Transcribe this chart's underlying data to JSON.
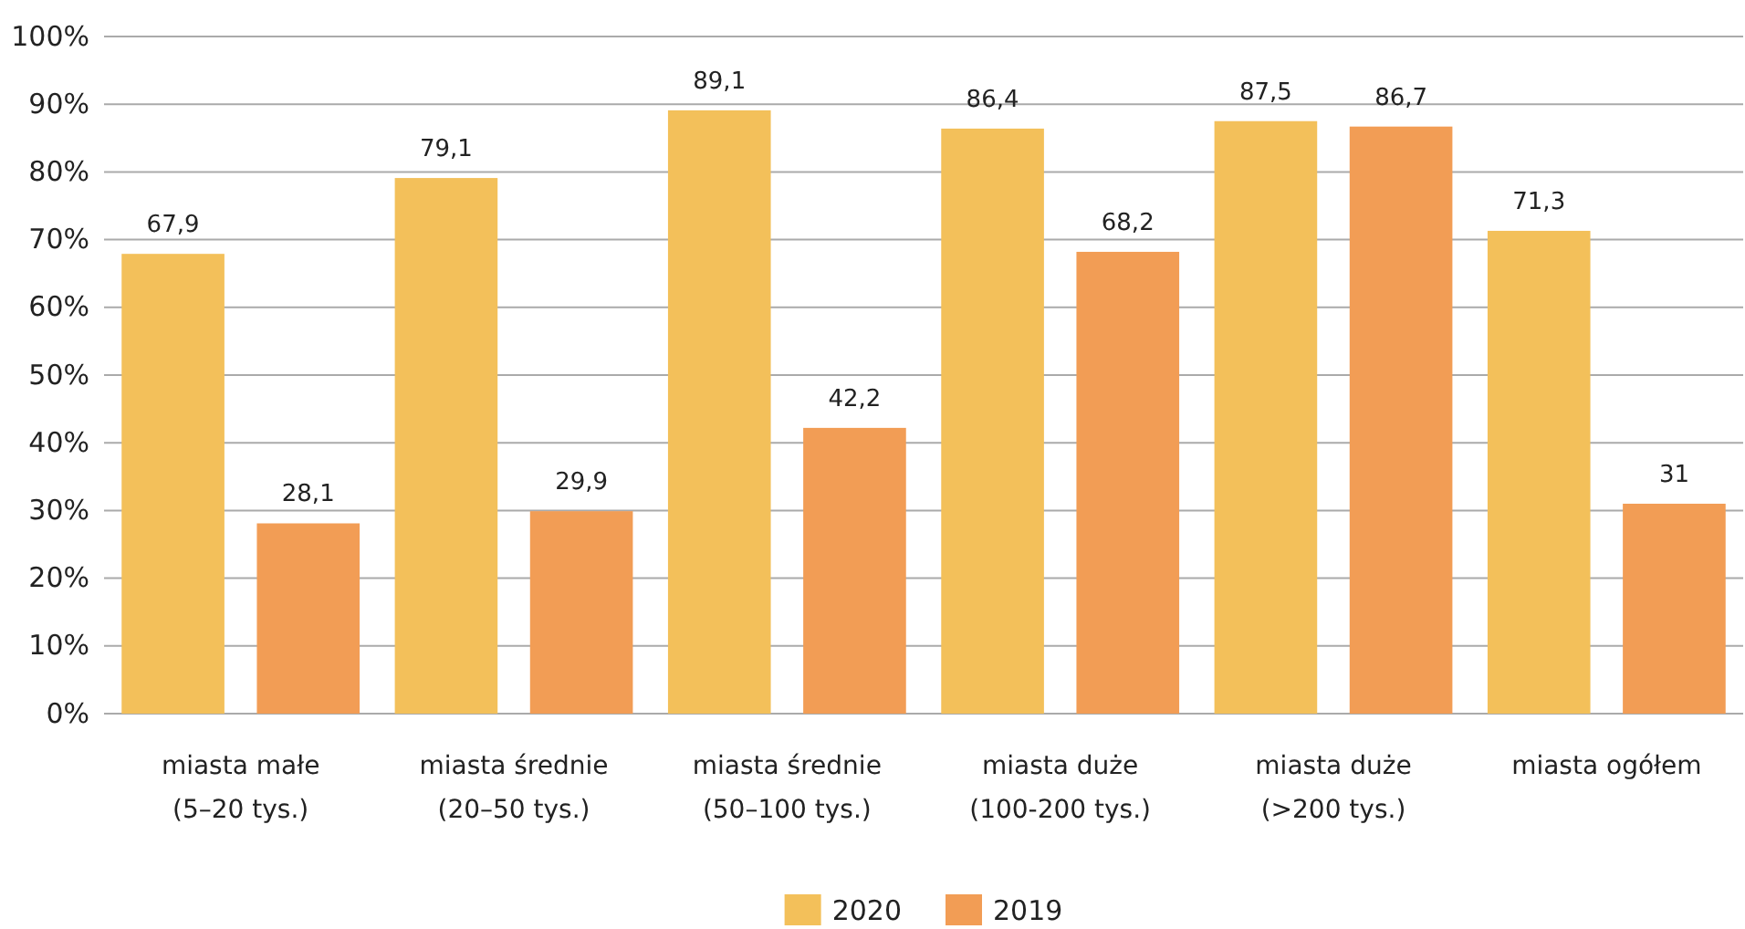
{
  "chart_data": {
    "type": "bar",
    "categories": [
      "miasta małe\n(5–20 tys.)",
      "miasta średnie\n(20–50 tys.)",
      "miasta średnie\n(50–100 tys.)",
      "miasta duże\n(100-200 tys.)",
      "miasta duże\n(>200 tys.)",
      "miasta ogółem"
    ],
    "series": [
      {
        "name": "2020",
        "color": "#f3c05a",
        "values": [
          67.9,
          79.1,
          89.1,
          86.4,
          87.5,
          71.3
        ],
        "value_labels": [
          "67,9",
          "79,1",
          "89,1",
          "86,4",
          "87,5",
          "71,3"
        ]
      },
      {
        "name": "2019",
        "color": "#f29d55",
        "values": [
          28.1,
          29.9,
          42.2,
          68.2,
          86.7,
          31
        ],
        "value_labels": [
          "28,1",
          "29,9",
          "42,2",
          "68,2",
          "86,7",
          "31"
        ]
      }
    ],
    "ylim": [
      0,
      100
    ],
    "yticks": [
      {
        "value": 0,
        "label": "0%"
      },
      {
        "value": 10,
        "label": "10%"
      },
      {
        "value": 20,
        "label": "20%"
      },
      {
        "value": 30,
        "label": "30%"
      },
      {
        "value": 40,
        "label": "40%"
      },
      {
        "value": 50,
        "label": "50%"
      },
      {
        "value": 60,
        "label": "60%"
      },
      {
        "value": 70,
        "label": "70%"
      },
      {
        "value": 80,
        "label": "80%"
      },
      {
        "value": 90,
        "label": "90%"
      },
      {
        "value": 100,
        "label": "100%"
      }
    ],
    "grid": "y",
    "legend": "bottom"
  }
}
